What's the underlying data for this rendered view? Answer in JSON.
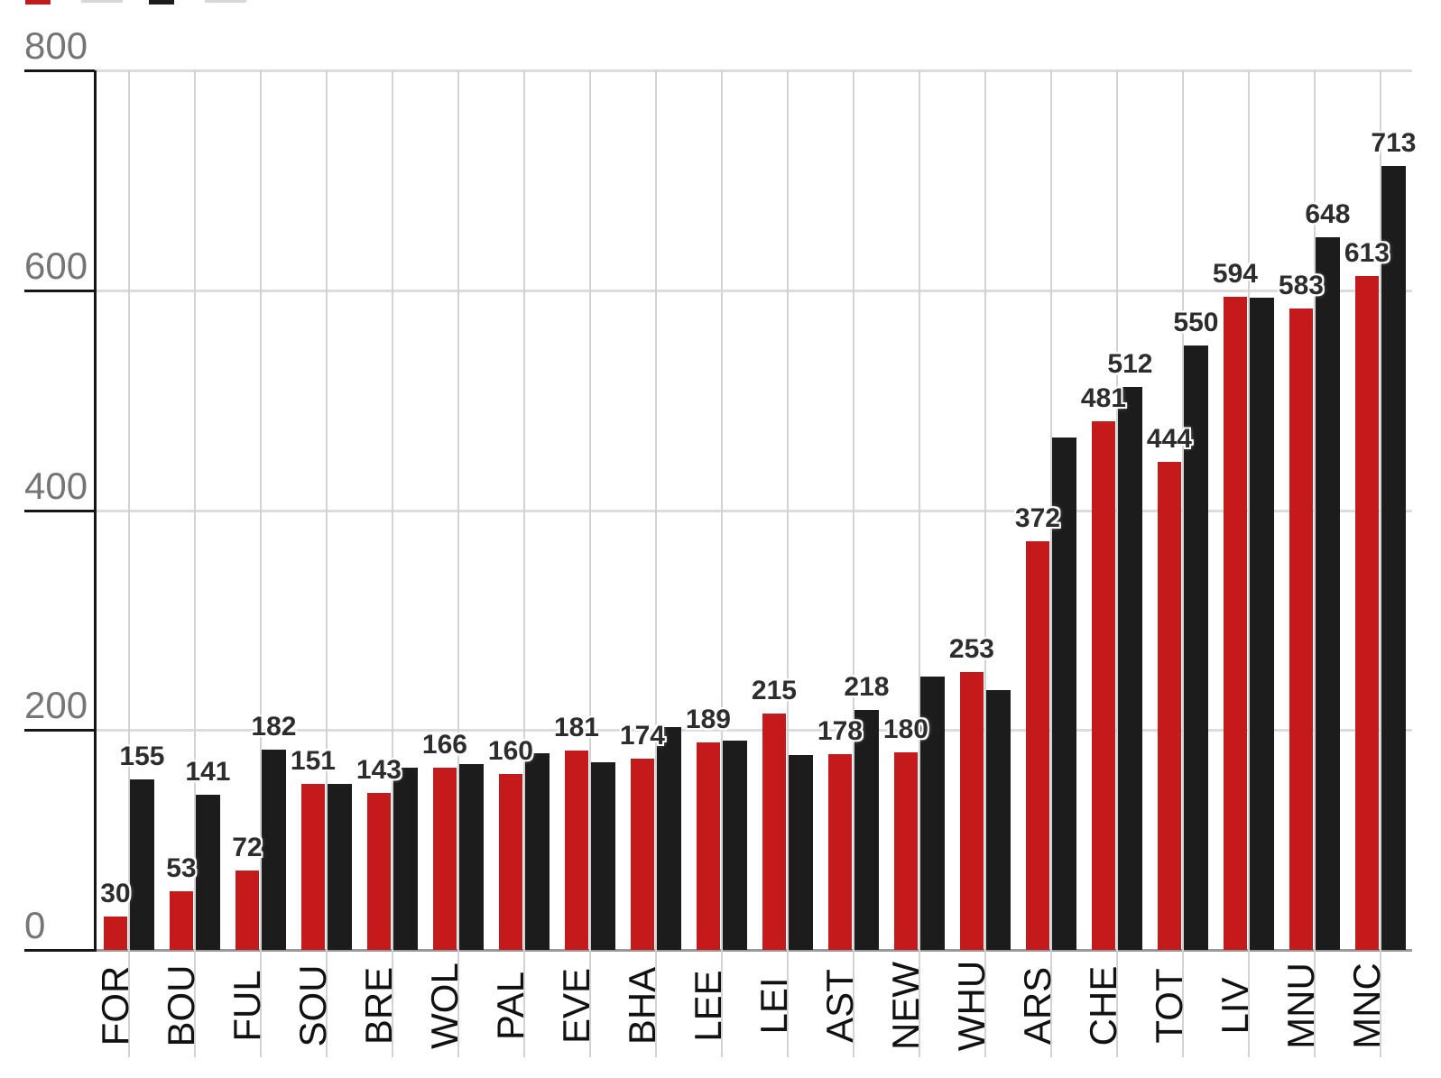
{
  "legend": {
    "note": "legend row is cropped at top edge; only bottom slivers of two colour swatches are visible",
    "swatches": [
      {
        "name": "red-series-swatch",
        "color": "#c41a1c"
      },
      {
        "name": "black-series-swatch",
        "color": "#1c1c1c"
      }
    ]
  },
  "chart_data": {
    "type": "bar",
    "title": "",
    "xlabel": "",
    "ylabel": "",
    "ylim": [
      0,
      800
    ],
    "yticks": [
      0,
      200,
      400,
      600,
      800
    ],
    "grid": true,
    "legend_position": "top (cropped out of frame)",
    "categories": [
      "FOR",
      "BOU",
      "FUL",
      "SOU",
      "BRE",
      "WOL",
      "PAL",
      "EVE",
      "BHA",
      "LEE",
      "LEI",
      "AST",
      "NEW",
      "WHU",
      "ARS",
      "CHE",
      "TOT",
      "LIV",
      "MNU",
      "MNC"
    ],
    "series": [
      {
        "name": "red",
        "color": "#c41a1c",
        "values": [
          30,
          53,
          72,
          151,
          143,
          166,
          160,
          181,
          174,
          189,
          215,
          178,
          180,
          253,
          372,
          481,
          444,
          594,
          583,
          613
        ],
        "data_labels": [
          "30",
          "53",
          "72",
          "151",
          "143",
          "166",
          "160",
          "181",
          "174",
          "189",
          "215",
          "178",
          "180",
          "253",
          "372",
          "481",
          "444",
          "594",
          "583",
          "613"
        ]
      },
      {
        "name": "black",
        "color": "#1c1c1c",
        "values": [
          155,
          141,
          182,
          151,
          166,
          169,
          179,
          171,
          203,
          190,
          177,
          218,
          249,
          236,
          466,
          512,
          550,
          593,
          648,
          713
        ],
        "data_labels": [
          "155",
          "141",
          "182",
          null,
          null,
          null,
          null,
          null,
          null,
          null,
          null,
          "218",
          null,
          null,
          null,
          "512",
          "550",
          null,
          "648",
          "713"
        ]
      }
    ],
    "note": "black-series values without visible data labels are estimated from bar heights against the gridlines"
  },
  "axis_colors": {
    "tick_label": "#757575",
    "gridline": "#dcdcdc",
    "baseline": "#999999",
    "axis_black": "#161616",
    "value_label": "#2d2d2d",
    "category_label": "#111111"
  }
}
